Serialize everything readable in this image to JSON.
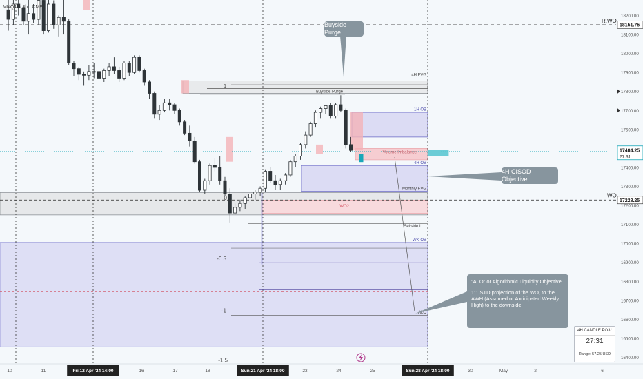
{
  "symbol": "MNQ1! · 4h · CME",
  "colors": {
    "bull": "#2e3438",
    "bear": "#2e3438",
    "pd_array_red": "#f4b3b8",
    "pd_array_blue": "#dcdcf4",
    "price_badge": "#2f3941",
    "bubble": "#87959e",
    "current_price": "#1aa7b8"
  },
  "chart_data": {
    "type": "candlestick",
    "symbol": "MNQ1!",
    "timeframe": "4h",
    "ylim": [
      16380,
      18260
    ],
    "y_ticks": [
      18200,
      18100,
      18000,
      17900,
      17800,
      17700,
      17600,
      17500,
      17400,
      17300,
      17200,
      17100,
      17000,
      16900,
      16800,
      16700,
      16600,
      16500,
      16400
    ],
    "y_tick_labels": [
      "18200.00",
      "18100.00",
      "18000.00",
      "17900.00",
      "17800.00",
      "17700.00",
      "17600.00",
      "17500.00",
      "17400.00",
      "17300.00",
      "17200.00",
      "17100.00",
      "17000.00",
      "16900.00",
      "16800.00",
      "16700.00",
      "16600.00",
      "16500.00",
      "16400.00"
    ],
    "x_ticks": [
      "10",
      "11",
      "Fri 12 Apr '24  14:00",
      "16",
      "17",
      "18",
      "Sun 21 Apr '24  18:00",
      "23",
      "24",
      "25",
      "Sun 28 Apr '24  18:00",
      "30",
      "May",
      "2",
      "6"
    ],
    "candles_ohlc": [
      [
        18230,
        18300,
        18120,
        18180
      ],
      [
        18180,
        18300,
        18150,
        18260
      ],
      [
        18260,
        18310,
        18200,
        18240
      ],
      [
        18240,
        18250,
        18150,
        18170
      ],
      [
        18170,
        18300,
        18100,
        18210
      ],
      [
        18210,
        18260,
        18160,
        18180
      ],
      [
        18180,
        18300,
        18150,
        18280
      ],
      [
        18280,
        18320,
        18100,
        18120
      ],
      [
        18120,
        18300,
        18110,
        18260
      ],
      [
        18260,
        18280,
        18130,
        18150
      ],
      [
        18150,
        18200,
        18090,
        18190
      ],
      [
        18190,
        18300,
        18100,
        18170
      ],
      [
        18170,
        18180,
        17940,
        17950
      ],
      [
        17950,
        17960,
        17880,
        17920
      ],
      [
        17920,
        17930,
        17860,
        17890
      ],
      [
        17890,
        17905,
        17830,
        17885
      ],
      [
        17885,
        17940,
        17860,
        17905
      ],
      [
        17905,
        17950,
        17870,
        17905
      ],
      [
        17905,
        17920,
        17830,
        17870
      ],
      [
        17870,
        17920,
        17850,
        17910
      ],
      [
        17910,
        17950,
        17880,
        17930
      ],
      [
        17930,
        17980,
        17890,
        17910
      ],
      [
        17910,
        17930,
        17850,
        17870
      ],
      [
        17870,
        17960,
        17860,
        17950
      ],
      [
        17950,
        17960,
        17880,
        17900
      ],
      [
        17900,
        17990,
        17890,
        17980
      ],
      [
        17980,
        17990,
        17900,
        17910
      ],
      [
        17910,
        17920,
        17830,
        17850
      ],
      [
        17850,
        17860,
        17760,
        17790
      ],
      [
        17790,
        17800,
        17660,
        17680
      ],
      [
        17680,
        17730,
        17650,
        17700
      ],
      [
        17700,
        17760,
        17690,
        17740
      ],
      [
        17740,
        17760,
        17700,
        17730
      ],
      [
        17730,
        17740,
        17680,
        17700
      ],
      [
        17700,
        17710,
        17620,
        17640
      ],
      [
        17640,
        17650,
        17570,
        17580
      ],
      [
        17580,
        17620,
        17510,
        17540
      ],
      [
        17540,
        17560,
        17420,
        17430
      ],
      [
        17430,
        17440,
        17270,
        17280
      ],
      [
        17280,
        17340,
        17260,
        17330
      ],
      [
        17330,
        17420,
        17310,
        17410
      ],
      [
        17410,
        17450,
        17380,
        17400
      ],
      [
        17400,
        17460,
        17310,
        17330
      ],
      [
        17330,
        17350,
        17250,
        17260
      ],
      [
        17260,
        17290,
        17110,
        17160
      ],
      [
        17160,
        17210,
        17150,
        17190
      ],
      [
        17190,
        17230,
        17170,
        17210
      ],
      [
        17210,
        17250,
        17180,
        17240
      ],
      [
        17240,
        17270,
        17200,
        17260
      ],
      [
        17260,
        17280,
        17230,
        17270
      ],
      [
        17270,
        17300,
        17250,
        17290
      ],
      [
        17290,
        17390,
        17270,
        17380
      ],
      [
        17380,
        17400,
        17320,
        17330
      ],
      [
        17330,
        17360,
        17280,
        17310
      ],
      [
        17310,
        17340,
        17280,
        17330
      ],
      [
        17330,
        17370,
        17310,
        17360
      ],
      [
        17360,
        17440,
        17350,
        17430
      ],
      [
        17430,
        17470,
        17400,
        17460
      ],
      [
        17460,
        17530,
        17440,
        17520
      ],
      [
        17520,
        17590,
        17500,
        17570
      ],
      [
        17570,
        17640,
        17560,
        17630
      ],
      [
        17630,
        17700,
        17610,
        17690
      ],
      [
        17690,
        17720,
        17660,
        17710
      ],
      [
        17710,
        17730,
        17680,
        17725
      ],
      [
        17725,
        17740,
        17660,
        17670
      ],
      [
        17670,
        17740,
        17660,
        17730
      ],
      [
        17730,
        17780,
        17690,
        17700
      ],
      [
        17700,
        17710,
        17500,
        17520
      ],
      [
        17520,
        17560,
        17480,
        17490
      ]
    ]
  },
  "levels": {
    "rwo_label": "R.WO",
    "rwo_price": "18151.75",
    "wo_label": "WO",
    "wo_price": "17228.25",
    "current_price": "17484.25",
    "countdown": "27:31"
  },
  "zone_labels": {
    "fvg_4h": "4H FVG",
    "buyside_purge": "Buyside Purge",
    "ob_1h": "1H OB",
    "volume_imbalance": "Volume Imbalance",
    "ob_4h": "4H OB",
    "monthly_fvg": "Monthly FVG",
    "wo2": "WO2",
    "sellside": "Sellside L.",
    "wk_ob": "WK OB",
    "alo": "ALO",
    "one": "1",
    "zero": "0",
    "neg_half": "-0.5",
    "neg_one": "-1",
    "neg_one_half": "-1.5"
  },
  "callouts": {
    "buyside_purge": "Buyside Purge",
    "cisod": "4H CISOD Objective",
    "alo_title": "\"ALO\" or Algorithmic Liquidity Objective",
    "alo_body": "1:1 STD projection of the WO, to the AWH (Assumed or Anticipated Weekly High) to the downside."
  },
  "widget": {
    "title": "4H CANDLE PO3°",
    "timer": "27:31",
    "range": "Range: 57.25 USD"
  }
}
